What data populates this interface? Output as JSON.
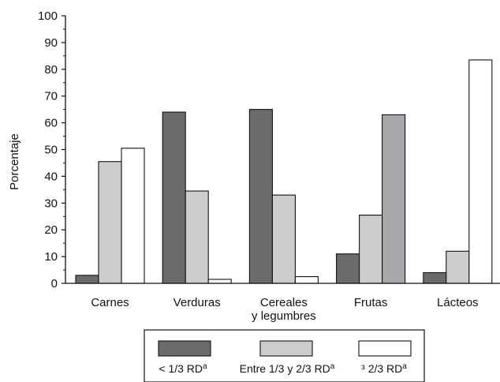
{
  "chart_data": {
    "type": "bar",
    "title": "",
    "xlabel": "",
    "ylabel": "Porcentaje",
    "ylim": [
      0,
      100
    ],
    "yticks": [
      0,
      10,
      20,
      30,
      40,
      50,
      60,
      70,
      80,
      90,
      100
    ],
    "categories": [
      [
        "Carnes"
      ],
      [
        "Verduras"
      ],
      [
        "Cereales",
        "y legumbres"
      ],
      [
        "Frutas"
      ],
      [
        "Lácteos"
      ]
    ],
    "series": [
      {
        "name": "< 1/3 RD",
        "sup": "a",
        "color": "#6b6b6b",
        "values": [
          3,
          64,
          65,
          11,
          4
        ]
      },
      {
        "name": "Entre 1/3 y 2/3 RD",
        "sup": "a",
        "color": "#cdcdcd",
        "values": [
          45.5,
          34.5,
          33,
          25.5,
          12
        ]
      },
      {
        "name": "³ 2/3 RD",
        "sup": "a",
        "color": "#ffffff",
        "values": [
          50.5,
          1.5,
          2.5,
          63,
          83.5
        ]
      }
    ],
    "series_overrides": [
      {
        "series": 2,
        "category": 3,
        "color": "#a8a8aa"
      }
    ],
    "grid": false,
    "legend": "bottom"
  }
}
